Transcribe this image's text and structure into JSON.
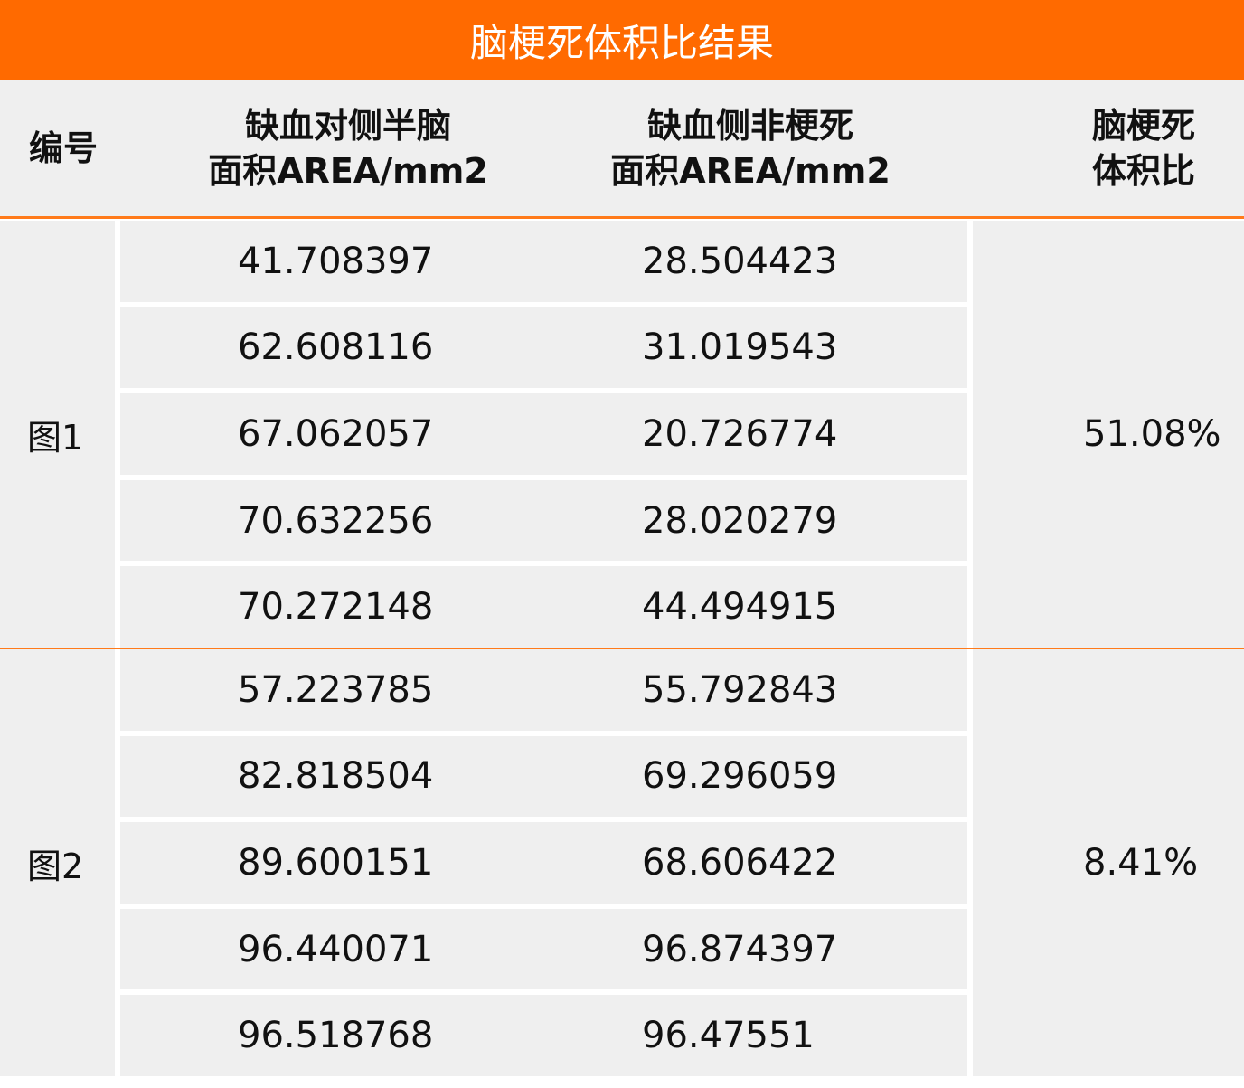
{
  "title": "脑梗死体积比结果",
  "headers": {
    "id": "编号",
    "col1_l1": "缺血对侧半脑",
    "col1_l2": "面积AREA/mm2",
    "col2_l1": "缺血侧非梗死",
    "col2_l2": "面积AREA/mm2",
    "col3_l1": "脑梗死",
    "col3_l2": "体积比"
  },
  "groups": [
    {
      "label": "图1",
      "ratio": "51.08%",
      "rows": [
        [
          "41.708397",
          "28.504423"
        ],
        [
          "62.608116",
          "31.019543"
        ],
        [
          "67.062057",
          "20.726774"
        ],
        [
          "70.632256",
          "28.020279"
        ],
        [
          "70.272148",
          "44.494915"
        ]
      ]
    },
    {
      "label": "图2",
      "ratio": "8.41%",
      "rows": [
        [
          "57.223785",
          "55.792843"
        ],
        [
          "82.818504",
          "69.296059"
        ],
        [
          "89.600151",
          "68.606422"
        ],
        [
          "96.440071",
          "96.874397"
        ],
        [
          "96.518768",
          "96.47551"
        ]
      ]
    }
  ],
  "colors": {
    "accent": "#ff6a00",
    "cell": "#efefef"
  }
}
